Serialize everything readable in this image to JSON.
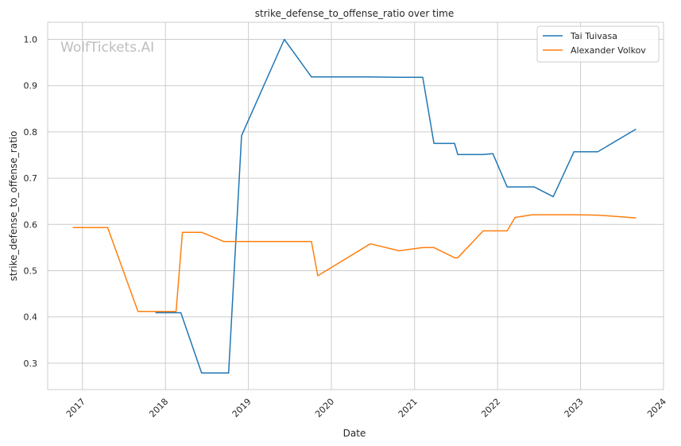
{
  "watermark": "WolfTickets.AI",
  "chart_data": {
    "type": "line",
    "title": "strike_defense_to_offense_ratio over time",
    "xlabel": "Date",
    "ylabel": "strike_defense_to_offense_ratio",
    "x_ticks": [
      "2017",
      "2018",
      "2019",
      "2020",
      "2021",
      "2022",
      "2023",
      "2024"
    ],
    "xlim": [
      "2016-08-01",
      "2024-01-01"
    ],
    "y_ticks": [
      0.3,
      0.4,
      0.5,
      0.6,
      0.7,
      0.8,
      0.9,
      1.0
    ],
    "ylim": [
      0.243,
      1.037
    ],
    "grid": true,
    "legend_position": "top-right",
    "series": [
      {
        "name": "Tai Tuivasa",
        "color": "#1f77b4",
        "points": [
          [
            "2017-11-18",
            0.409
          ],
          [
            "2018-03-10",
            0.409
          ],
          [
            "2018-06-09",
            0.279
          ],
          [
            "2018-10-06",
            0.279
          ],
          [
            "2018-12-02",
            0.792
          ],
          [
            "2019-06-08",
            1.0
          ],
          [
            "2019-10-05",
            0.919
          ],
          [
            "2020-06-20",
            0.919
          ],
          [
            "2020-10-24",
            0.918
          ],
          [
            "2021-02-06",
            0.918
          ],
          [
            "2021-03-27",
            0.775
          ],
          [
            "2021-06-26",
            0.775
          ],
          [
            "2021-07-10",
            0.751
          ],
          [
            "2021-10-30",
            0.751
          ],
          [
            "2021-12-11",
            0.753
          ],
          [
            "2022-02-12",
            0.681
          ],
          [
            "2022-06-11",
            0.681
          ],
          [
            "2022-09-03",
            0.66
          ],
          [
            "2022-12-03",
            0.757
          ],
          [
            "2023-03-18",
            0.757
          ],
          [
            "2023-09-02",
            0.806
          ]
        ]
      },
      {
        "name": "Alexander Volkov",
        "color": "#ff7f0e",
        "points": [
          [
            "2016-11-19",
            0.593
          ],
          [
            "2017-04-22",
            0.593
          ],
          [
            "2017-09-02",
            0.412
          ],
          [
            "2018-01-20",
            0.412
          ],
          [
            "2018-02-17",
            0.412
          ],
          [
            "2018-03-17",
            0.583
          ],
          [
            "2018-06-09",
            0.583
          ],
          [
            "2018-09-15",
            0.563
          ],
          [
            "2019-10-05",
            0.563
          ],
          [
            "2019-11-02",
            0.489
          ],
          [
            "2020-06-20",
            0.558
          ],
          [
            "2020-10-24",
            0.543
          ],
          [
            "2021-02-06",
            0.55
          ],
          [
            "2021-03-27",
            0.55
          ],
          [
            "2021-06-26",
            0.528
          ],
          [
            "2021-07-10",
            0.528
          ],
          [
            "2021-10-30",
            0.586
          ],
          [
            "2022-02-12",
            0.586
          ],
          [
            "2022-03-19",
            0.615
          ],
          [
            "2022-06-04",
            0.621
          ],
          [
            "2022-09-03",
            0.621
          ],
          [
            "2022-12-03",
            0.621
          ],
          [
            "2023-03-18",
            0.62
          ],
          [
            "2023-09-02",
            0.614
          ]
        ]
      }
    ]
  }
}
